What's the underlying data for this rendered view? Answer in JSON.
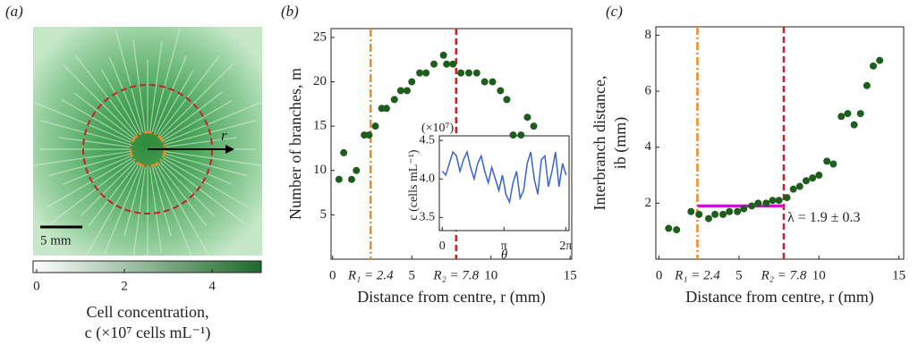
{
  "chart_data": [
    {
      "type": "image",
      "panel_label": "(a)",
      "scale_bar_label": "5 mm",
      "arrow_label": "r",
      "colorbar_label": [
        "Cell concentration,",
        "c (×10⁷ cells mL⁻¹)"
      ],
      "clim": [
        -0.08,
        5.12
      ],
      "cticks": [
        0,
        2,
        4
      ],
      "colormap": [
        "#ffffff",
        "#1e6b2a"
      ]
    },
    {
      "type": "scatter",
      "panel_label": "(b)",
      "xlabel": "Distance from centre, r (mm)",
      "ylabel": "Number of branches, m",
      "color": "#1d5e1d",
      "x": [
        0.4,
        0.7,
        1.2,
        1.5,
        2.0,
        2.3,
        2.7,
        3.1,
        3.4,
        3.9,
        4.3,
        4.7,
        5.0,
        5.5,
        5.9,
        6.4,
        7.0,
        7.2,
        7.6,
        8.1,
        8.6,
        9.1,
        9.6,
        10.1,
        10.6,
        11.0,
        11.4,
        11.9,
        12.3,
        12.7
      ],
      "values": [
        9,
        12,
        9,
        10,
        14,
        14,
        15,
        17,
        17,
        18,
        19,
        19,
        20,
        21,
        21,
        22,
        23,
        22,
        22,
        21,
        21,
        21,
        20,
        20,
        19,
        18,
        14,
        14,
        16,
        15
      ],
      "xlim": [
        -0.1,
        15.1
      ],
      "ylim": [
        0,
        26
      ],
      "xticks": [
        0,
        5,
        10,
        15
      ],
      "yticks": [
        5,
        10,
        15,
        20,
        25
      ],
      "vlines": [
        {
          "value": 2.4,
          "label": "R₁ = 2.4",
          "color": "#f08a24",
          "style": "dashdot"
        },
        {
          "value": 7.8,
          "label": "R₂ = 7.8",
          "color": "#c8202a",
          "style": "dashed"
        }
      ],
      "inset": {
        "type": "line",
        "ylabel": "c (cells mL⁻¹)",
        "multiplier": "(×10⁷)",
        "xlabel": "θ",
        "color": "#3a62d0",
        "x": [
          0,
          0.18,
          0.36,
          0.54,
          0.72,
          0.9,
          1.08,
          1.26,
          1.44,
          1.62,
          1.8,
          1.98,
          2.16,
          2.34,
          2.52,
          2.7,
          2.88,
          3.06,
          3.24,
          3.42,
          3.6,
          3.78,
          3.96,
          4.14,
          4.32,
          4.5,
          4.68,
          4.86,
          5.04,
          5.22,
          5.4,
          5.58,
          5.76,
          5.94,
          6.12,
          6.3
        ],
        "values": [
          4.1,
          4.05,
          4.2,
          4.35,
          4.3,
          4.1,
          4.25,
          4.35,
          4.15,
          4.0,
          4.2,
          4.3,
          4.1,
          3.95,
          4.15,
          4.0,
          3.85,
          4.05,
          3.8,
          3.7,
          3.95,
          4.1,
          3.75,
          3.85,
          4.2,
          4.35,
          4.0,
          3.8,
          4.25,
          4.3,
          3.9,
          4.1,
          4.35,
          3.9,
          4.2,
          4.05
        ],
        "xlim": [
          -0.15,
          6.45
        ],
        "ylim": [
          3.33,
          4.56
        ],
        "xticks": [
          0,
          {
            "value": 3.1416,
            "label": "π"
          },
          {
            "value": 6.2832,
            "label": "2π"
          }
        ],
        "yticks": [
          3.5,
          {
            "value": 4,
            "label": "4.0"
          },
          4.5
        ]
      }
    },
    {
      "type": "scatter",
      "panel_label": "(c)",
      "xlabel": "Distance from centre, r (mm)",
      "ylabel": [
        "Interbranch distance,",
        "ib (mm)"
      ],
      "color": "#1d5e1d",
      "x": [
        0.6,
        1.1,
        2.0,
        2.5,
        3.1,
        3.5,
        4.0,
        4.4,
        4.9,
        5.3,
        5.8,
        6.2,
        6.7,
        7.1,
        7.5,
        8.0,
        8.4,
        8.8,
        9.2,
        9.6,
        10.0,
        10.5,
        10.9,
        11.4,
        11.8,
        12.2,
        12.6,
        13.0,
        13.4,
        13.8
      ],
      "values": [
        1.1,
        1.05,
        1.7,
        1.6,
        1.45,
        1.6,
        1.6,
        1.7,
        1.7,
        1.8,
        1.9,
        2.0,
        2.0,
        2.1,
        2.1,
        2.2,
        2.5,
        2.6,
        2.8,
        2.9,
        3.0,
        3.5,
        3.4,
        5.1,
        5.2,
        4.8,
        5.2,
        6.2,
        6.9,
        7.1
      ],
      "xlim": [
        -0.2,
        15.3
      ],
      "ylim": [
        0,
        8.3
      ],
      "xticks": [
        0,
        5,
        10,
        15
      ],
      "yticks": [
        2,
        4,
        6,
        8
      ],
      "vlines": [
        {
          "value": 2.4,
          "label": "R₁ = 2.4",
          "color": "#f08a24",
          "style": "dashdot"
        },
        {
          "value": 7.8,
          "label": "R₂ = 7.8",
          "color": "#c8202a",
          "style": "dashed"
        }
      ],
      "hline": {
        "xrange": [
          2.4,
          7.8
        ],
        "value": 1.9,
        "label": "λ = 1.9 ± 0.3",
        "color": "#e600e6"
      }
    }
  ]
}
